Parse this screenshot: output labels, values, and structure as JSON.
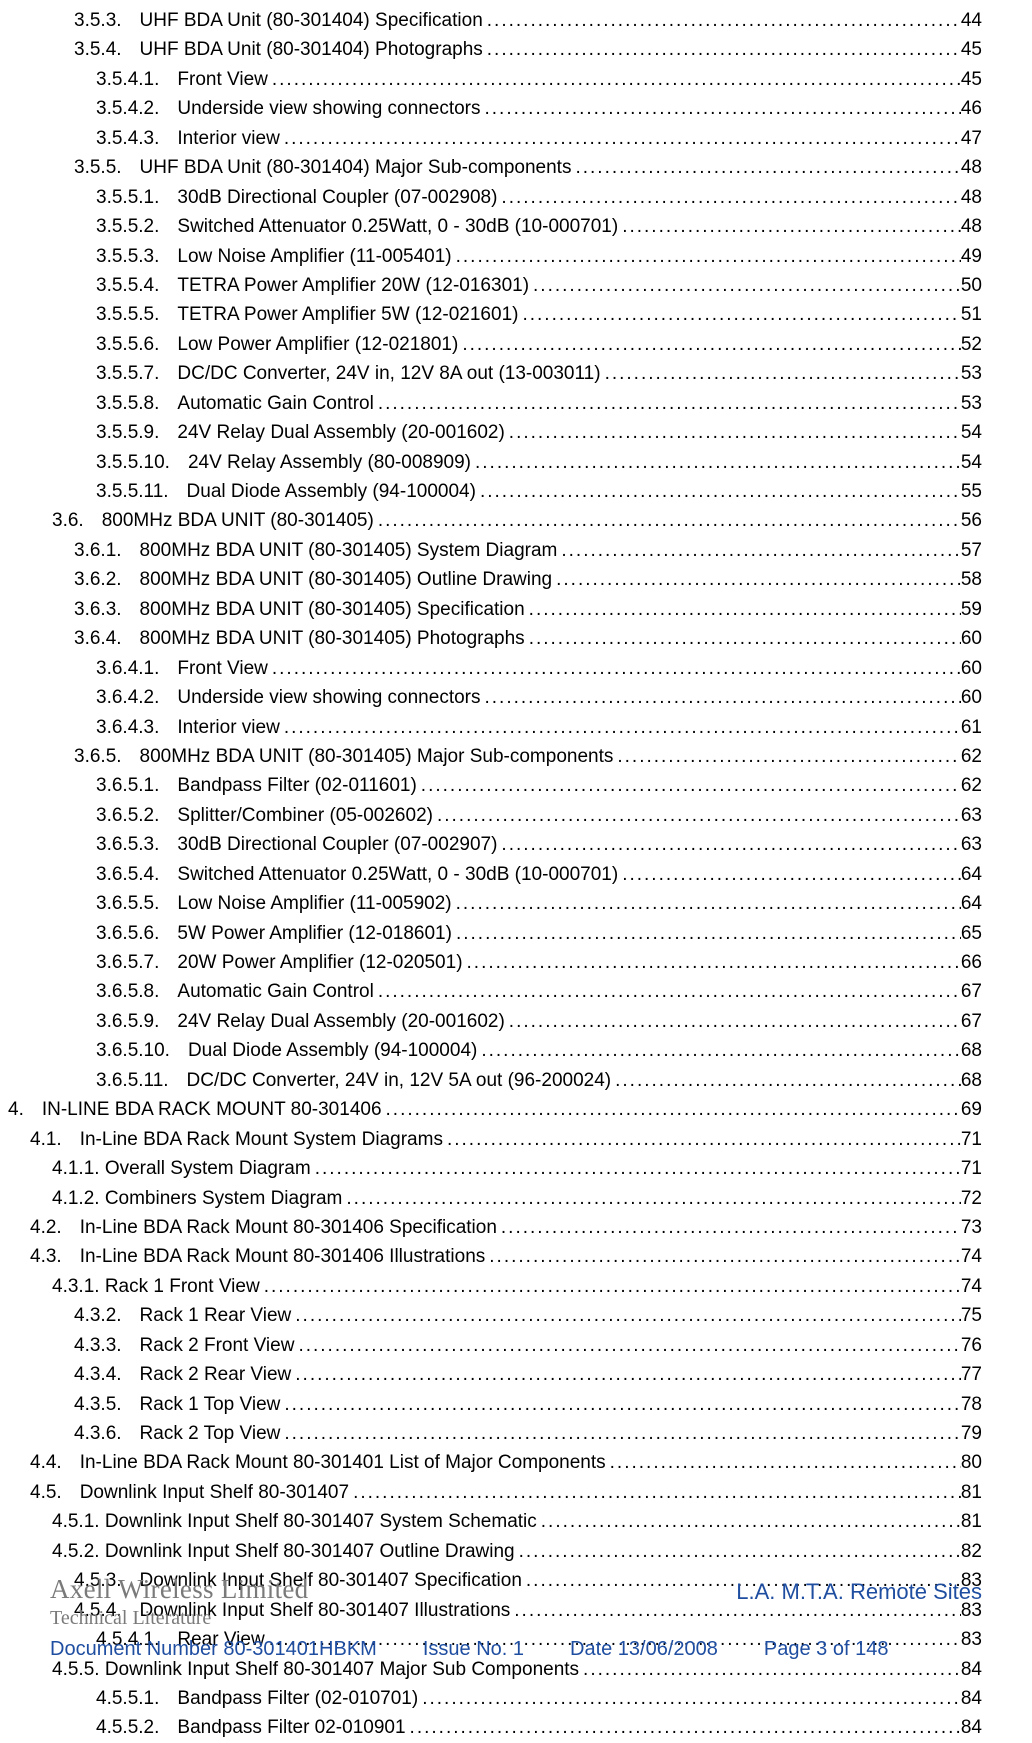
{
  "toc": [
    {
      "lvl": 3,
      "num": "3.5.3.",
      "title": "UHF BDA Unit (80-301404) Specification",
      "page": "44"
    },
    {
      "lvl": 3,
      "num": "3.5.4.",
      "title": "UHF BDA Unit (80-301404) Photographs",
      "page": "45"
    },
    {
      "lvl": 4,
      "num": "3.5.4.1.",
      "title": "Front View",
      "page": "45"
    },
    {
      "lvl": 4,
      "num": "3.5.4.2.",
      "title": "Underside view showing connectors",
      "page": "46"
    },
    {
      "lvl": 4,
      "num": "3.5.4.3.",
      "title": "Interior view",
      "page": "47"
    },
    {
      "lvl": 3,
      "num": "3.5.5.",
      "title": "UHF BDA Unit (80-301404) Major Sub-components",
      "page": "48"
    },
    {
      "lvl": 4,
      "num": "3.5.5.1.",
      "title": "30dB Directional Coupler (07-002908)",
      "page": "48"
    },
    {
      "lvl": 4,
      "num": "3.5.5.2.",
      "title": "Switched Attenuator 0.25Watt, 0 - 30dB (10-000701)",
      "page": "48"
    },
    {
      "lvl": 4,
      "num": "3.5.5.3.",
      "title": "Low Noise Amplifier (11-005401)",
      "page": "49"
    },
    {
      "lvl": 4,
      "num": "3.5.5.4.",
      "title": "TETRA Power Amplifier 20W (12-016301)",
      "page": "50"
    },
    {
      "lvl": 4,
      "num": "3.5.5.5.",
      "title": "TETRA Power Amplifier 5W (12-021601)",
      "page": "51"
    },
    {
      "lvl": 4,
      "num": "3.5.5.6.",
      "title": "Low Power Amplifier (12-021801)",
      "page": "52"
    },
    {
      "lvl": 4,
      "num": "3.5.5.7.",
      "title": "DC/DC Converter, 24V in, 12V 8A out (13-003011)",
      "page": "53"
    },
    {
      "lvl": 4,
      "num": "3.5.5.8.",
      "title": "Automatic Gain Control",
      "page": "53"
    },
    {
      "lvl": 4,
      "num": "3.5.5.9.",
      "title": "24V Relay Dual Assembly (20-001602)",
      "page": "54"
    },
    {
      "lvl": 4,
      "num": "3.5.5.10.",
      "title": "24V Relay Assembly (80-008909)",
      "page": "54"
    },
    {
      "lvl": 4,
      "num": "3.5.5.11.",
      "title": "Dual Diode Assembly (94-100004)",
      "page": "55"
    },
    {
      "lvl": 2,
      "num": "3.6.",
      "title": "800MHz BDA UNIT (80-301405)",
      "page": "56"
    },
    {
      "lvl": 3,
      "num": "3.6.1.",
      "title": "800MHz BDA UNIT (80-301405) System Diagram",
      "page": "57"
    },
    {
      "lvl": 3,
      "num": "3.6.2.",
      "title": "800MHz BDA UNIT (80-301405) Outline Drawing",
      "page": "58"
    },
    {
      "lvl": 3,
      "num": "3.6.3.",
      "title": "800MHz BDA UNIT (80-301405) Specification",
      "page": "59"
    },
    {
      "lvl": 3,
      "num": "3.6.4.",
      "title": "800MHz BDA UNIT (80-301405) Photographs",
      "page": "60"
    },
    {
      "lvl": 4,
      "num": "3.6.4.1.",
      "title": "Front View",
      "page": "60"
    },
    {
      "lvl": 4,
      "num": "3.6.4.2.",
      "title": "Underside view showing connectors",
      "page": "60"
    },
    {
      "lvl": 4,
      "num": "3.6.4.3.",
      "title": "Interior view",
      "page": "61"
    },
    {
      "lvl": 3,
      "num": "3.6.5.",
      "title": "800MHz BDA UNIT (80-301405) Major Sub-components",
      "page": "62"
    },
    {
      "lvl": 4,
      "num": "3.6.5.1.",
      "title": "Bandpass Filter (02-011601)",
      "page": "62"
    },
    {
      "lvl": 4,
      "num": "3.6.5.2.",
      "title": "Splitter/Combiner (05-002602)",
      "page": "63"
    },
    {
      "lvl": 4,
      "num": "3.6.5.3.",
      "title": "30dB Directional Coupler (07-002907)",
      "page": "63"
    },
    {
      "lvl": 4,
      "num": "3.6.5.4.",
      "title": "Switched Attenuator 0.25Watt, 0 - 30dB (10-000701)",
      "page": "64"
    },
    {
      "lvl": 4,
      "num": "3.6.5.5.",
      "title": "Low Noise Amplifier (11-005902)",
      "page": "64"
    },
    {
      "lvl": 4,
      "num": "3.6.5.6.",
      "title": "5W Power Amplifier (12-018601)",
      "page": "65"
    },
    {
      "lvl": 4,
      "num": "3.6.5.7.",
      "title": "20W Power Amplifier (12-020501)",
      "page": "66"
    },
    {
      "lvl": 4,
      "num": "3.6.5.8.",
      "title": "Automatic Gain Control",
      "page": "67"
    },
    {
      "lvl": 4,
      "num": "3.6.5.9.",
      "title": "24V Relay Dual Assembly (20-001602)",
      "page": "67"
    },
    {
      "lvl": 4,
      "num": "3.6.5.10.",
      "title": "Dual Diode Assembly (94-100004)",
      "page": "68"
    },
    {
      "lvl": 4,
      "num": "3.6.5.11.",
      "title": "DC/DC Converter, 24V in, 12V 5A out (96-200024)",
      "page": "68"
    },
    {
      "lvl": 0,
      "num": "4.",
      "title": "IN-LINE BDA RACK MOUNT 80-301406",
      "page": "69"
    },
    {
      "lvl": 1,
      "num": "4.1.",
      "title": "In-Line BDA Rack Mount System Diagrams",
      "page": "71"
    },
    {
      "lvl": 2,
      "num": "4.1.1.",
      "title": "Overall System Diagram",
      "page": "71",
      "nosep": true
    },
    {
      "lvl": 2,
      "num": "4.1.2.",
      "title": "Combiners System Diagram",
      "page": "72",
      "nosep": true
    },
    {
      "lvl": 1,
      "num": "4.2.",
      "title": "In-Line BDA Rack Mount 80-301406 Specification",
      "page": "73"
    },
    {
      "lvl": 1,
      "num": "4.3.",
      "title": "In-Line BDA Rack Mount 80-301406 Illustrations",
      "page": "74"
    },
    {
      "lvl": 2,
      "num": "4.3.1.",
      "title": "Rack 1 Front View",
      "page": "74",
      "nosep": true
    },
    {
      "lvl": 3,
      "num": "4.3.2.",
      "title": "Rack 1 Rear View",
      "page": "75"
    },
    {
      "lvl": 3,
      "num": "4.3.3.",
      "title": "Rack 2 Front View",
      "page": "76"
    },
    {
      "lvl": 3,
      "num": "4.3.4.",
      "title": "Rack 2 Rear View",
      "page": "77"
    },
    {
      "lvl": 3,
      "num": "4.3.5.",
      "title": "Rack 1 Top View",
      "page": "78"
    },
    {
      "lvl": 3,
      "num": "4.3.6.",
      "title": "Rack 2 Top View",
      "page": "79"
    },
    {
      "lvl": 1,
      "num": "4.4.",
      "title": "In-Line BDA Rack Mount 80-301401 List of Major Components",
      "page": "80"
    },
    {
      "lvl": 1,
      "num": "4.5.",
      "title": "Downlink Input Shelf 80-301407",
      "page": "81"
    },
    {
      "lvl": 2,
      "num": "4.5.1.",
      "title": "Downlink Input Shelf 80-301407 System Schematic",
      "page": "81",
      "nosep": true
    },
    {
      "lvl": 2,
      "num": "4.5.2.",
      "title": "Downlink Input Shelf 80-301407 Outline Drawing",
      "page": "82",
      "nosep": true
    },
    {
      "lvl": 3,
      "num": "4.5.3.",
      "title": "Downlink Input Shelf 80-301407 Specification",
      "page": "83"
    },
    {
      "lvl": 3,
      "num": "4.5.4.",
      "title": "Downlink Input Shelf 80-301407 Illustrations",
      "page": "83"
    },
    {
      "lvl": 4,
      "num": "4.5.4.1.",
      "title": "Rear View",
      "page": "83"
    },
    {
      "lvl": 2,
      "num": "4.5.5.",
      "title": "Downlink Input Shelf 80-301407 Major Sub Components",
      "page": "84",
      "nosep": true
    },
    {
      "lvl": 4,
      "num": "4.5.5.1.",
      "title": "Bandpass Filter (02-010701)",
      "page": "84"
    },
    {
      "lvl": 4,
      "num": "4.5.5.2.",
      "title": "Bandpass Filter 02-010901",
      "page": "84"
    }
  ],
  "footer": {
    "company": "Axell Wireless Limited",
    "sub": "Technical Literature",
    "site": "L.A. M.T.A. Remote Sites",
    "doc": "Document Number 80-301401HBKM",
    "issue": "Issue No. 1",
    "date": "Date 13/06/2008",
    "page": "Page 3 of 148"
  }
}
